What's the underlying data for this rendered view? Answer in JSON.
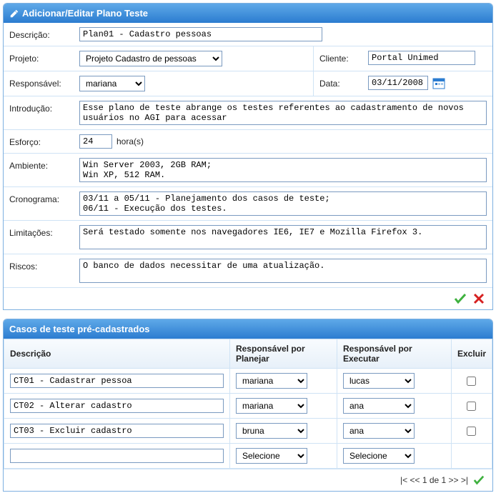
{
  "colors": {
    "header_gradient_from": "#5fa9e8",
    "header_gradient_to": "#2b7cd0",
    "border": "#7eb0e0",
    "cell_border": "#cfe3f5",
    "confirm": "#3fb13f",
    "cancel": "#d62020"
  },
  "panel1": {
    "title": "Adicionar/Editar Plano Teste",
    "labels": {
      "descricao": "Descrição:",
      "projeto": "Projeto:",
      "cliente": "Cliente:",
      "responsavel": "Responsável:",
      "data": "Data:",
      "introducao": "Introdução:",
      "esforco": "Esforço:",
      "horas": "hora(s)",
      "ambiente": "Ambiente:",
      "cronograma": "Cronograma:",
      "limitacoes": "Limitações:",
      "riscos": "Riscos:"
    },
    "values": {
      "descricao": "Plan01 - Cadastro pessoas",
      "projeto": "Projeto Cadastro de pessoas",
      "cliente": "Portal Unimed",
      "responsavel": "mariana",
      "data": "03/11/2008",
      "introducao": "Esse plano de teste abrange os testes referentes ao cadastramento de novos usuários no AGI para acessar",
      "esforco": "24",
      "ambiente": "Win Server 2003, 2GB RAM;\nWin XP, 512 RAM.",
      "cronograma": "03/11 a 05/11 - Planejamento dos casos de teste;\n06/11 - Execução dos testes.",
      "limitacoes": "Será testado somente nos navegadores IE6, IE7 e Mozilla Firefox 3.",
      "riscos": "O banco de dados necessitar de uma atualização."
    }
  },
  "panel2": {
    "title": "Casos de teste pré-cadastrados",
    "headers": {
      "descricao": "Descrição",
      "planejar": "Responsável por Planejar",
      "executar": "Responsável por Executar",
      "excluir": "Excluir"
    },
    "placeholder_select": "Selecione",
    "rows": [
      {
        "descricao": "CT01 - Cadastrar pessoa",
        "planejar": "mariana",
        "executar": "lucas",
        "excluir": false
      },
      {
        "descricao": "CT02 - Alterar cadastro",
        "planejar": "mariana",
        "executar": "ana",
        "excluir": false
      },
      {
        "descricao": "CT03 - Excluir cadastro",
        "planejar": "bruna",
        "executar": "ana",
        "excluir": false
      }
    ],
    "pager": "|< << 1 de 1 >> >|"
  }
}
